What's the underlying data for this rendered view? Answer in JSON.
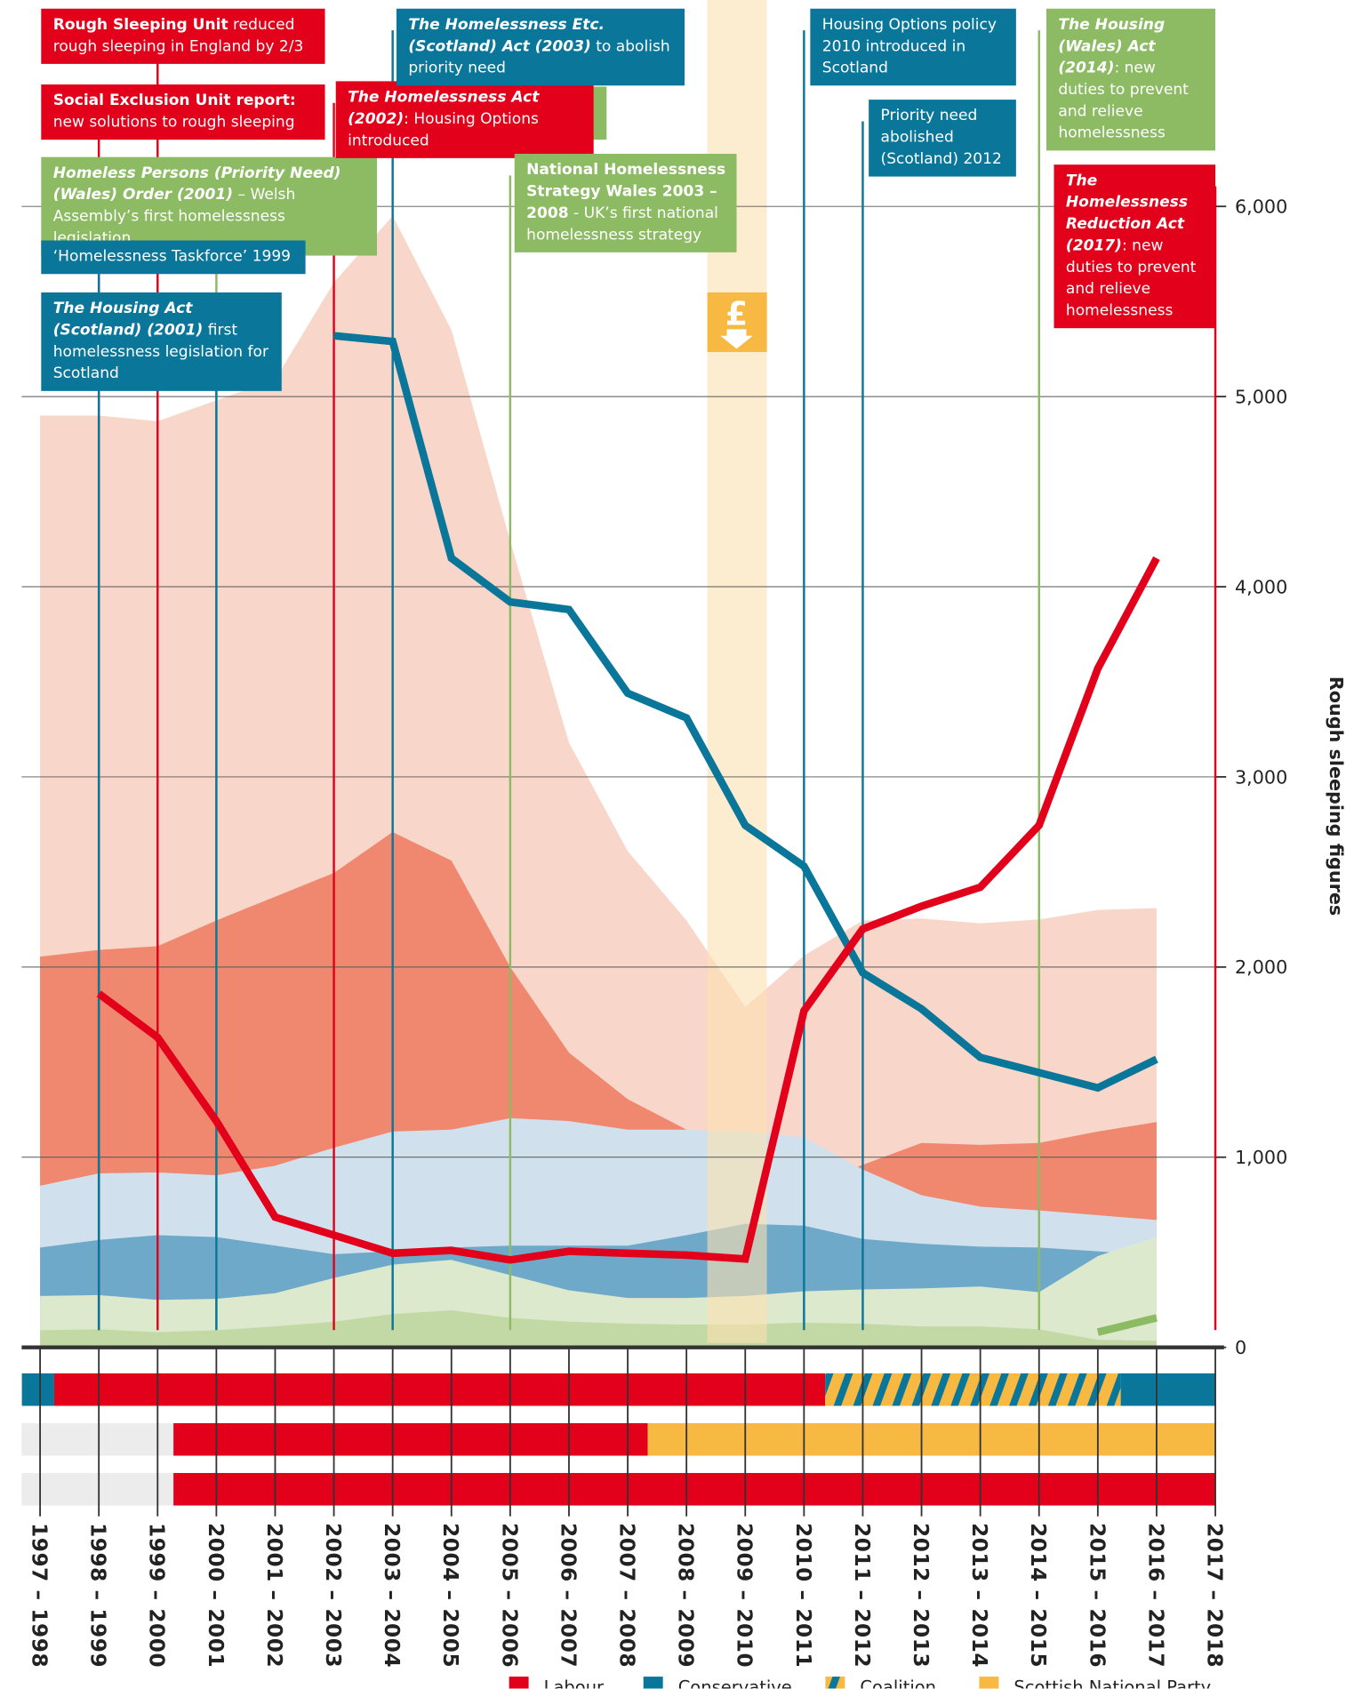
{
  "chart_data": {
    "type": "line",
    "categories": [
      "1997 – 1998",
      "1998 – 1999",
      "1999 – 2000",
      "2000 – 2001",
      "2001 – 2002",
      "2002 – 2003",
      "2003 – 2004",
      "2004 – 2005",
      "2005 – 2006",
      "2006 – 2007",
      "2007 – 2008",
      "2008 – 2009",
      "2009 – 2010",
      "2010 – 2011",
      "2011 – 2012",
      "2012 – 2013",
      "2013 – 2014",
      "2014 – 2015",
      "2015 – 2016",
      "2016 – 2017",
      "2017 – 2018"
    ],
    "ylim": [
      0,
      7000
    ],
    "yticks": [
      0,
      {
        "value": 1000,
        "label": "1,000"
      },
      {
        "value": 2000,
        "label": "2,000"
      },
      {
        "value": 3000,
        "label": "3,000"
      },
      {
        "value": 4000,
        "label": "4,000"
      },
      {
        "value": 5000,
        "label": "5,000"
      },
      {
        "value": 6000,
        "label": "6,000"
      }
    ],
    "y_label": "Rough sleeping figures",
    "grid": true,
    "areas": [
      {
        "color": "#f9d6ca",
        "values": [
          4900,
          4900,
          4870,
          4980,
          5090,
          5600,
          5950,
          5350,
          4240,
          3180,
          2610,
          2245,
          1790,
          2060,
          2245,
          2255,
          2230,
          2250,
          2300,
          2310,
          null
        ]
      },
      {
        "color": "#f0876f",
        "values": [
          2055,
          2090,
          2110,
          2245,
          2370,
          2495,
          2710,
          2560,
          2000,
          1550,
          1305,
          1145,
          837,
          850,
          960,
          1075,
          1065,
          1075,
          1135,
          1185,
          null
        ]
      },
      {
        "color": "#d0e1ed",
        "values": [
          850,
          915,
          920,
          905,
          955,
          1050,
          1135,
          1145,
          1205,
          1190,
          1145,
          1145,
          1135,
          1105,
          935,
          800,
          740,
          720,
          695,
          670,
          null
        ]
      },
      {
        "color": "#6fa9c9",
        "values": [
          525,
          565,
          590,
          580,
          535,
          490,
          505,
          525,
          535,
          535,
          535,
          590,
          650,
          640,
          570,
          545,
          530,
          525,
          505,
          480,
          null
        ]
      },
      {
        "color": "#dde9cd",
        "values": [
          270,
          275,
          250,
          255,
          285,
          365,
          435,
          460,
          380,
          300,
          260,
          260,
          270,
          295,
          305,
          310,
          320,
          290,
          480,
          580,
          null
        ]
      },
      {
        "color": "#c3d9a5",
        "values": [
          90,
          95,
          80,
          90,
          110,
          135,
          175,
          195,
          155,
          135,
          125,
          120,
          120,
          130,
          125,
          110,
          110,
          95,
          40,
          35,
          null
        ]
      }
    ],
    "series": [
      {
        "color": "#0a7699",
        "values": [
          null,
          null,
          null,
          null,
          null,
          5320,
          5290,
          4150,
          3920,
          3880,
          3440,
          3310,
          2745,
          2530,
          1970,
          1780,
          1525,
          1445,
          1365,
          1515,
          null
        ]
      },
      {
        "color": "#e2001a",
        "values": [
          null,
          1860,
          1630,
          1190,
          685,
          590,
          495,
          510,
          460,
          505,
          495,
          485,
          465,
          1770,
          2200,
          2320,
          2420,
          2745,
          3570,
          4150,
          null
        ]
      },
      {
        "color": "#8dbb64",
        "values": [
          null,
          null,
          null,
          null,
          null,
          null,
          null,
          null,
          null,
          null,
          null,
          null,
          null,
          null,
          null,
          null,
          null,
          null,
          80,
          155,
          null
        ]
      }
    ],
    "recession_icon": "£",
    "annotations": [
      {
        "at": 2,
        "color": "#e2001a",
        "parts": [
          {
            "text": "Rough Sleeping Unit",
            "b": true
          },
          {
            "text": " reduced rough sleeping in England by 2/3"
          }
        ]
      },
      {
        "at": 1,
        "color": "#e2001a",
        "parts": [
          {
            "text": "Social Exclusion Unit report:",
            "b": true
          },
          {
            "text": " new solutions to rough sleeping"
          }
        ]
      },
      {
        "at": 3,
        "color": "#8dbb64",
        "parts": [
          {
            "text": "Homeless Persons (Priority Need) (Wales) Order (2001)",
            "b": true,
            "i": true
          },
          {
            "text": " – Welsh Assembly’s first homelessness legislation"
          }
        ]
      },
      {
        "at": 1,
        "color": "#0a7699",
        "parts": [
          {
            "text": "‘Homelessness Taskforce’ 1999"
          }
        ]
      },
      {
        "at": 3,
        "color": "#0a7699",
        "parts": [
          {
            "text": "The Housing Act (Scotland) (2001)",
            "b": true,
            "i": true
          },
          {
            "text": " first homelessness legislation for Scotland"
          }
        ]
      },
      {
        "at": 5,
        "color": "#e2001a",
        "parts": [
          {
            "text": "The Homelessness Act (2002)",
            "b": true,
            "i": true
          },
          {
            "text": ": Housing Options introduced"
          }
        ]
      },
      {
        "at": 6,
        "color": "#0a7699",
        "parts": [
          {
            "text": "The Homelessness Etc. (Scotland) Act (2003)",
            "b": true,
            "i": true
          },
          {
            "text": " to abolish priority need"
          }
        ]
      },
      {
        "at": 8,
        "color": "#8dbb64",
        "parts": [
          {
            "text": "National Homelessness Strategy Wales 2003 – 2008",
            "b": true
          },
          {
            "text": " - UK’s first national homelessness strategy"
          }
        ]
      },
      {
        "at": 13,
        "color": "#0a7699",
        "parts": [
          {
            "text": "Housing Options policy 2010 introduced in Scotland"
          }
        ]
      },
      {
        "at": 14,
        "color": "#0a7699",
        "parts": [
          {
            "text": "Priority need abolished (Scotland) 2012"
          }
        ]
      },
      {
        "at": 17,
        "color": "#8dbb64",
        "parts": [
          {
            "text": "The Housing (Wales) Act (2014)",
            "b": true,
            "i": true
          },
          {
            "text": ": new duties to prevent and relieve homelessness"
          }
        ]
      },
      {
        "at": 20,
        "color": "#e2001a",
        "parts": [
          {
            "text": "The Homelessness Reduction Act (2017)",
            "b": true,
            "i": true
          },
          {
            "text": ": new duties to prevent and relieve homelessness"
          }
        ]
      }
    ],
    "parties": [
      {
        "label": "Labour",
        "color": "#e2001a"
      },
      {
        "label": "Conservative",
        "color": "#0a7699"
      },
      {
        "label": "Coalition",
        "colors": [
          "#0a7699",
          "#f7b942"
        ]
      },
      {
        "label": "Scottish National Party",
        "color": "#f7b942"
      }
    ],
    "party_rows": [
      [
        {
          "party": 1,
          "from": -0.31,
          "to": 0.24
        },
        {
          "party": 0,
          "from": 0.24,
          "to": 13.36
        },
        {
          "party": 2,
          "from": 13.36,
          "to": 18.39
        },
        {
          "party": 1,
          "from": 18.39,
          "to": 20
        }
      ],
      [
        {
          "party": 0,
          "from": 2.27,
          "to": 10.34
        },
        {
          "party": 3,
          "from": 10.34,
          "to": 20
        }
      ],
      [
        {
          "party": 0,
          "from": 2.27,
          "to": 20
        }
      ]
    ]
  }
}
